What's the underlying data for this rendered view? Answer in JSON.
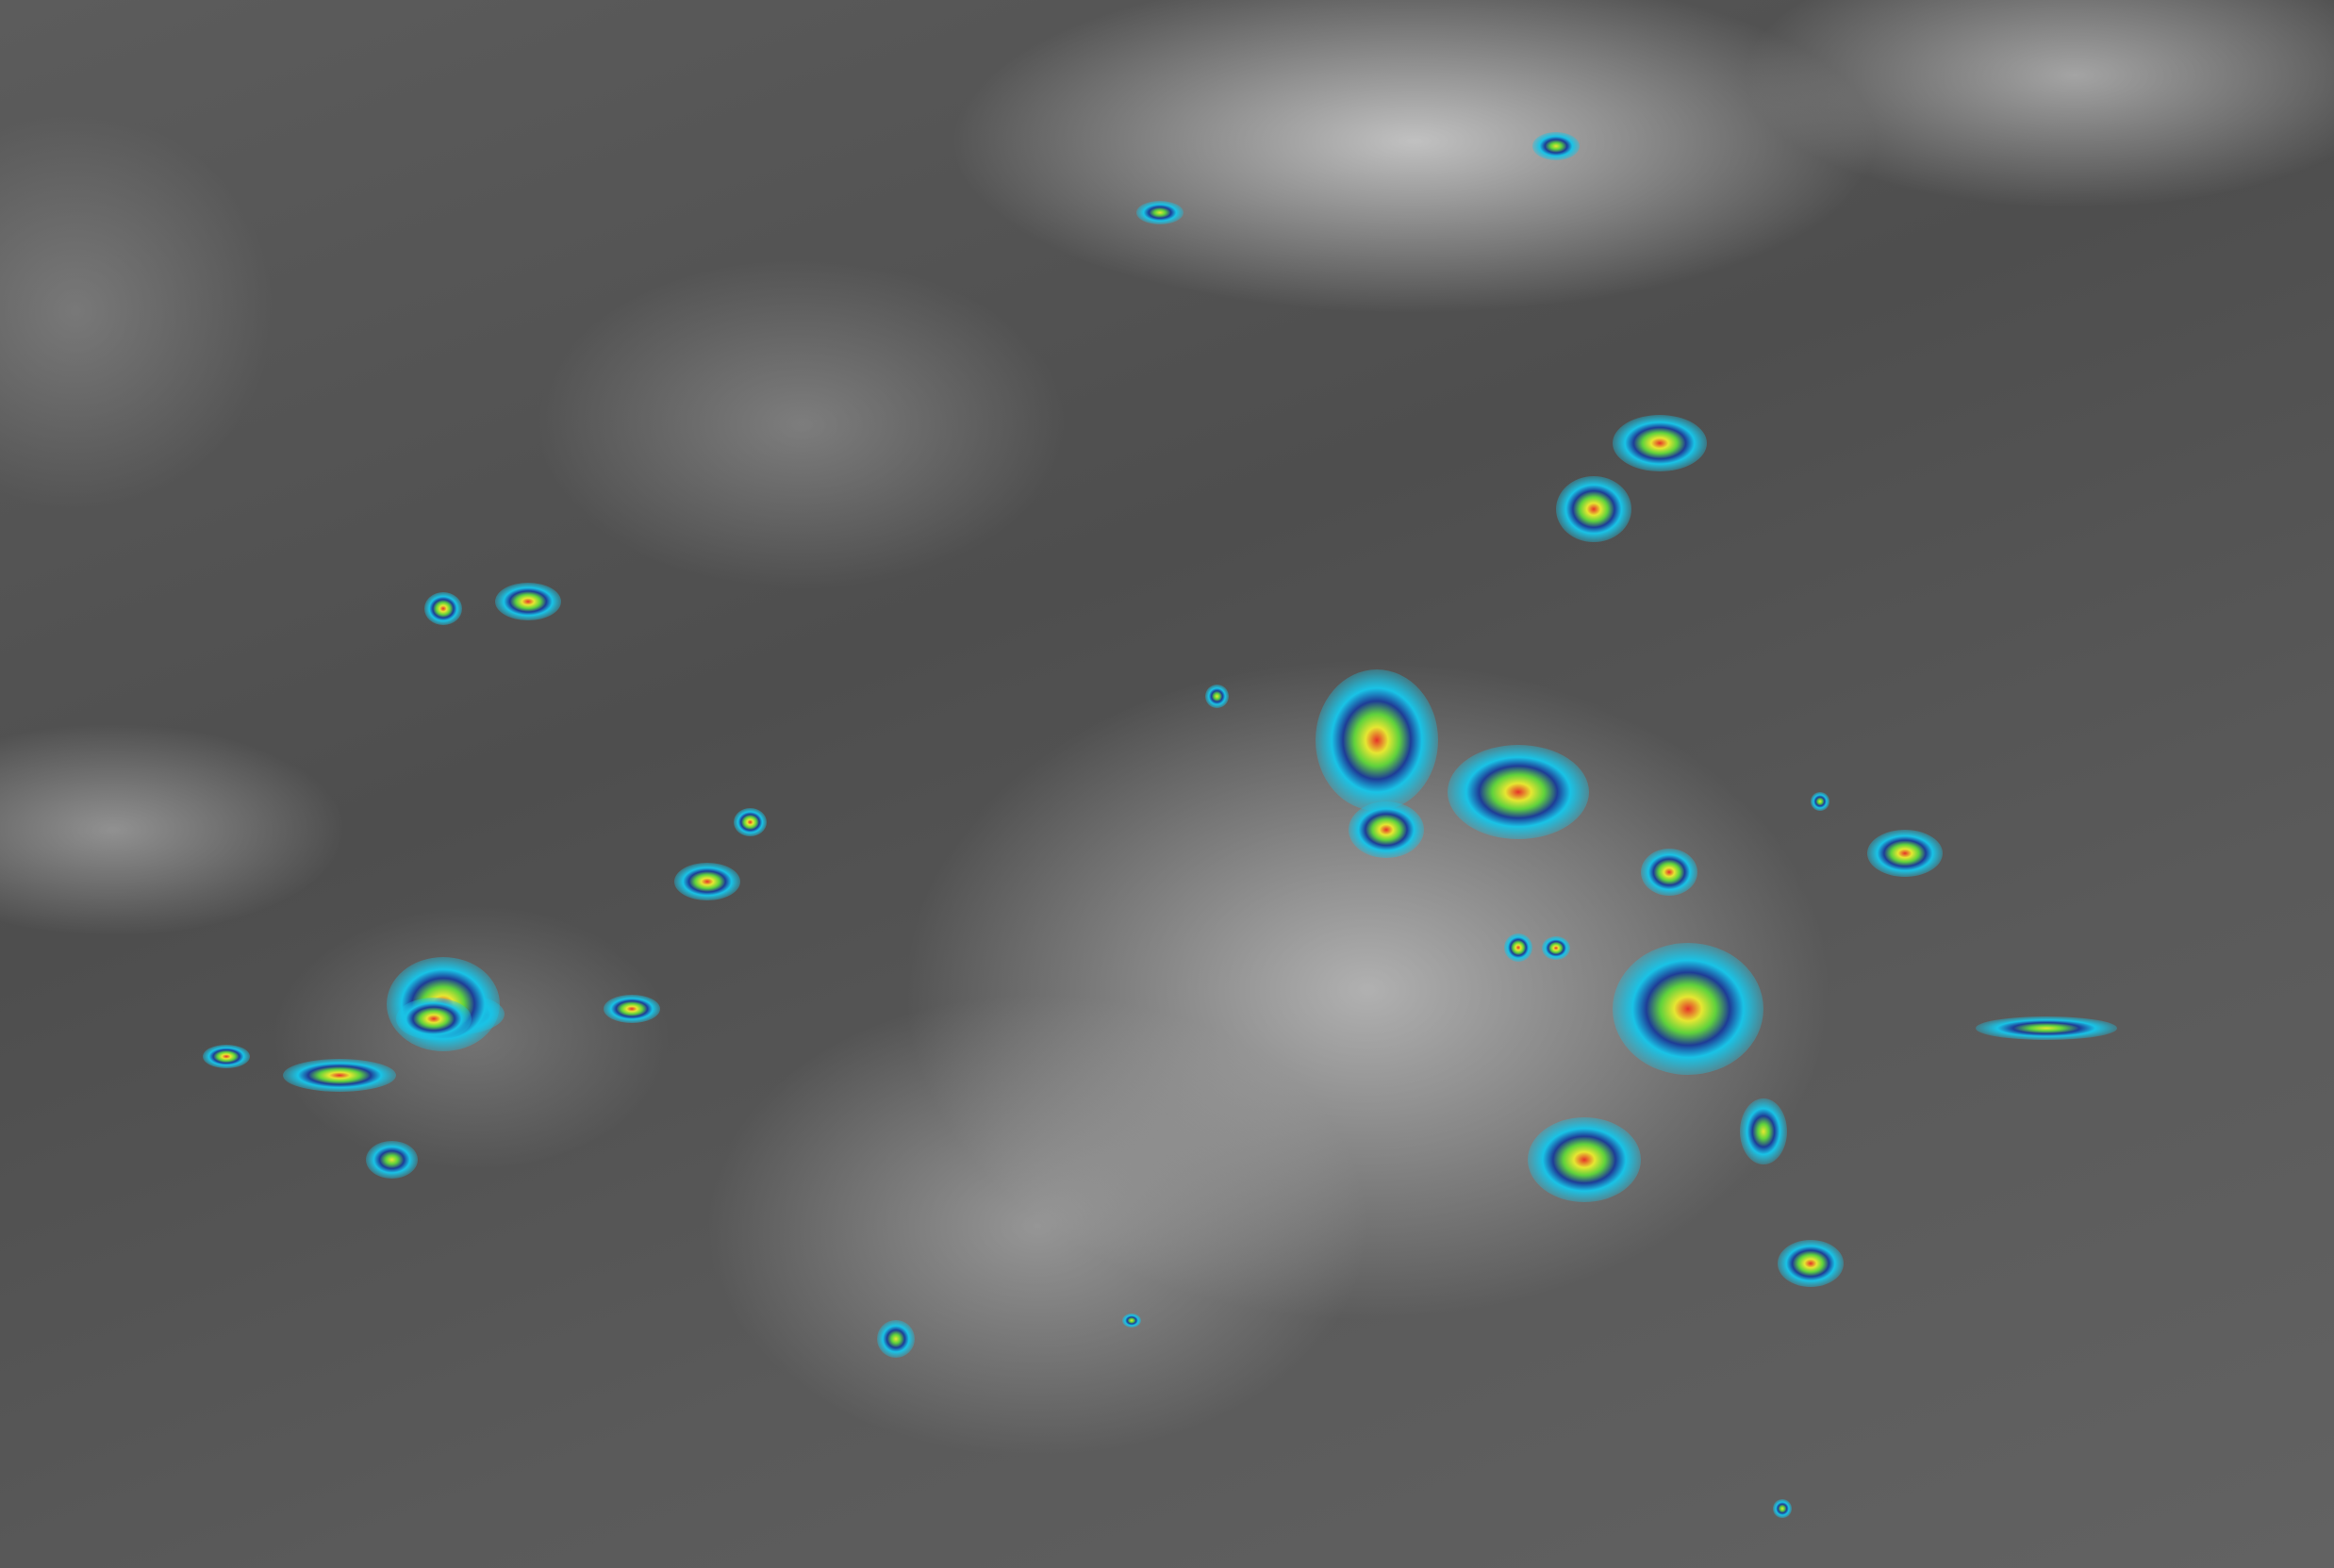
{
  "image": {
    "kind": "infrared satellite imagery",
    "palette": {
      "background": "#555555",
      "cloud": "#e0e0e0",
      "cold_cyan": "#19c3e6",
      "cold_blue": "#1e3c96",
      "green": "#5fd23c",
      "yellow": "#e6e632",
      "red": "#e63228"
    }
  }
}
